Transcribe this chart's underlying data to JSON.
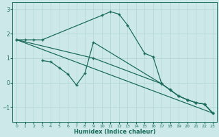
{
  "xlabel": "Humidex (Indice chaleur)",
  "xlim": [
    -0.5,
    23.5
  ],
  "ylim": [
    -1.6,
    3.3
  ],
  "xticks": [
    0,
    1,
    2,
    3,
    4,
    5,
    6,
    7,
    8,
    9,
    10,
    11,
    12,
    13,
    14,
    15,
    16,
    17,
    18,
    19,
    20,
    21,
    22,
    23
  ],
  "yticks": [
    -1,
    0,
    1,
    2,
    3
  ],
  "bg_color": "#cce8e8",
  "line_color": "#1a6b5a",
  "grid_color": "#b0d4d4",
  "line1_x": [
    0,
    1,
    2,
    3,
    10,
    11,
    12,
    13,
    15,
    16,
    17,
    18,
    19,
    20,
    21,
    22,
    23
  ],
  "line1_y": [
    1.75,
    1.75,
    1.75,
    1.75,
    2.75,
    2.9,
    2.8,
    2.35,
    1.2,
    1.05,
    -0.05,
    -0.3,
    -0.55,
    -0.7,
    -0.82,
    -0.88,
    -1.25
  ],
  "line2_x": [
    3,
    4,
    5,
    6,
    7,
    8,
    9,
    17,
    18,
    19,
    20,
    21,
    22,
    23
  ],
  "line2_y": [
    0.9,
    0.85,
    0.6,
    0.35,
    -0.1,
    0.38,
    1.65,
    -0.05,
    -0.3,
    -0.55,
    -0.7,
    -0.82,
    -0.88,
    -1.25
  ],
  "line3_x": [
    0,
    9,
    17,
    18,
    19,
    20,
    21,
    22,
    23
  ],
  "line3_y": [
    1.75,
    1.0,
    -0.05,
    -0.3,
    -0.55,
    -0.7,
    -0.82,
    -0.88,
    -1.25
  ],
  "line4_x": [
    0,
    23
  ],
  "line4_y": [
    1.75,
    -1.25
  ]
}
